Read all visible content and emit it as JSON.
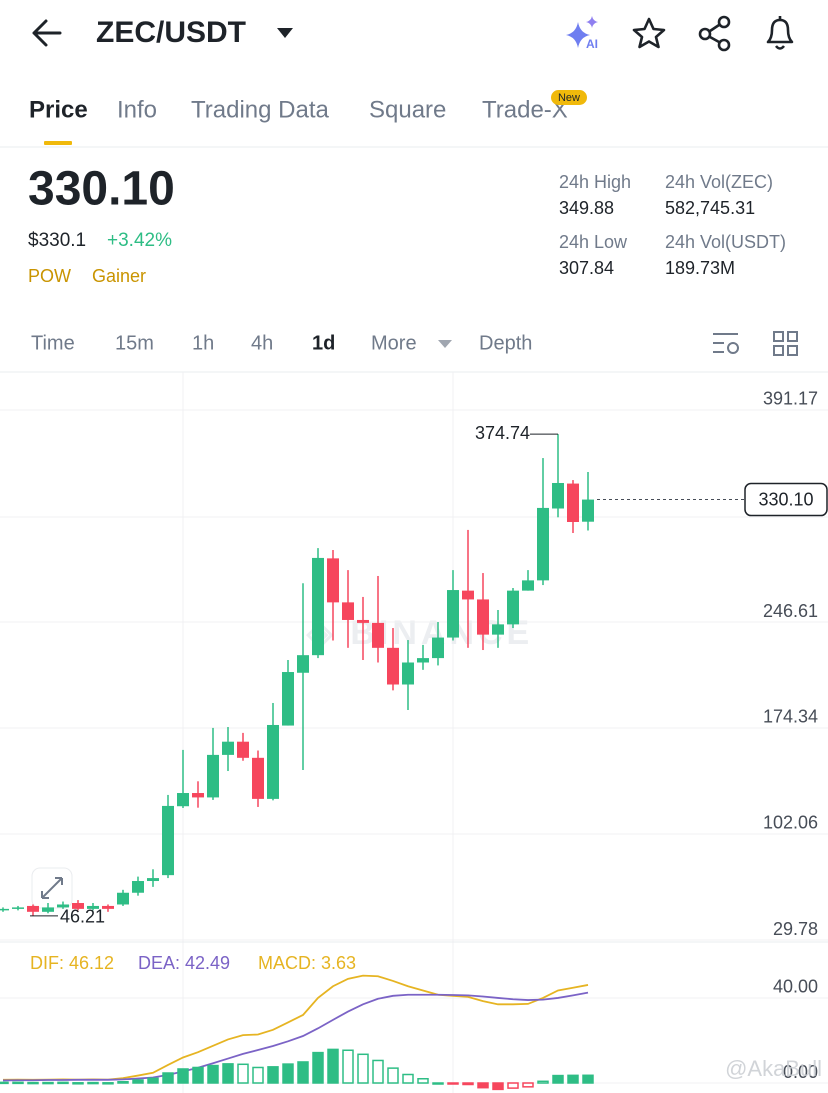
{
  "header": {
    "pair": "ZEC/USDT"
  },
  "tabs": [
    "Price",
    "Info",
    "Trading Data",
    "Square",
    "Trade-X"
  ],
  "badge": "New",
  "price": {
    "last": "330.10",
    "fiat": "$330.1",
    "change": "+3.42%",
    "tags": [
      "POW",
      "Gainer"
    ]
  },
  "stats": [
    {
      "label": "24h High",
      "value": "349.88"
    },
    {
      "label": "24h Vol(ZEC)",
      "value": "582,745.31"
    },
    {
      "label": "24h Low",
      "value": "307.84"
    },
    {
      "label": "24h Vol(USDT)",
      "value": "189.73M"
    }
  ],
  "intervals": [
    "Time",
    "15m",
    "1h",
    "4h",
    "1d",
    "More",
    "Depth"
  ],
  "chart_data": [
    {
      "type": "candlestick",
      "open": [
        50,
        51,
        53,
        49,
        52,
        55,
        51,
        53,
        54,
        62,
        70,
        74,
        121,
        130,
        127,
        156,
        165,
        154,
        126,
        176,
        212,
        224,
        290,
        260,
        248,
        246,
        229,
        204,
        219,
        222,
        236,
        268,
        262,
        238,
        245,
        268,
        275,
        324,
        341,
        315
      ],
      "high": [
        52,
        53,
        54,
        55,
        56,
        57,
        55,
        54,
        64,
        73,
        78,
        128.7,
        159.4,
        138,
        174.4,
        175,
        171,
        159,
        191.4,
        220.7,
        273,
        297,
        295.7,
        282,
        263.7,
        278,
        242.5,
        234.3,
        231,
        246.6,
        282,
        309.4,
        280,
        254.8,
        269.8,
        282,
        358.4,
        374.74,
        343.4,
        348.9
      ],
      "low": [
        49,
        50,
        46.21,
        48,
        51,
        50,
        50,
        49,
        53,
        60,
        66,
        72,
        119.8,
        120,
        125.3,
        145,
        152,
        120.5,
        125,
        176,
        145.7,
        222,
        234,
        229,
        220.7,
        219,
        200,
        186.6,
        214,
        217,
        234,
        229,
        227.5,
        229,
        242.5,
        268,
        271.8,
        318,
        307.3,
        309
      ],
      "close": [
        51,
        52,
        49,
        52,
        54,
        51,
        53,
        51,
        62,
        70,
        72,
        121.2,
        130,
        127,
        156,
        165,
        154,
        126,
        176.4,
        212.5,
        224,
        290.3,
        260,
        248,
        246,
        229,
        204,
        219,
        222,
        236,
        268.4,
        262,
        238,
        245,
        268,
        275,
        324.4,
        341.4,
        314.8,
        330.1
      ],
      "up_color": "#2ebd85",
      "down_color": "#f6465d",
      "ylim": [
        29.78,
        417.08
      ],
      "yticks": [
        29.78,
        102.06,
        174.34,
        246.61,
        391.17
      ],
      "grid": true,
      "last_price_label": "330.10"
    },
    {
      "type": "macd",
      "series": [
        {
          "name": "DIF: 46.12",
          "color": "#e6b422",
          "kind": "line",
          "values": [
            1.5,
            1.6,
            1.5,
            1.6,
            1.7,
            1.6,
            1.7,
            1.6,
            2.3,
            3.5,
            4.8,
            8.5,
            12,
            14.5,
            17.5,
            20.5,
            22.5,
            22.8,
            25,
            28.5,
            32,
            40,
            45.5,
            49,
            50.5,
            50.2,
            48,
            45.5,
            43.5,
            41.5,
            41,
            40.5,
            38.5,
            37,
            37,
            37.2,
            40,
            43.5,
            44.8,
            46.12
          ]
        },
        {
          "name": "DEA: 42.49",
          "color": "#7b63c6",
          "kind": "line",
          "values": [
            1.2,
            1.3,
            1.3,
            1.4,
            1.4,
            1.5,
            1.5,
            1.5,
            1.7,
            2.1,
            2.6,
            3.8,
            5.4,
            7.2,
            9.3,
            11.5,
            13.7,
            15.5,
            17.4,
            19.6,
            22.1,
            25.7,
            29.7,
            33.6,
            37,
            39.6,
            41,
            41.5,
            41.5,
            41.5,
            41.4,
            41.2,
            40.7,
            40,
            39.4,
            39,
            39.2,
            40,
            41.2,
            42.49
          ]
        },
        {
          "name": "MACD: 3.63",
          "color": "#e6b422",
          "kind": "bar",
          "values": [
            0.3,
            0.3,
            0.2,
            0.2,
            0.3,
            0.1,
            0.2,
            0.1,
            0.6,
            1.4,
            2.2,
            4.7,
            6.6,
            7.3,
            8.2,
            9,
            8.8,
            7.3,
            7.6,
            8.9,
            9.9,
            14.3,
            15.8,
            15.4,
            13.5,
            10.6,
            7,
            4,
            2,
            0,
            -0.4,
            -0.7,
            -2.2,
            -3,
            -2.4,
            -1.8,
            0.8,
            3.5,
            3.6,
            3.63
          ]
        }
      ],
      "up_color": "#2ebd85",
      "down_color": "#f6465d",
      "ylim": [
        -4.7,
        64.9
      ],
      "yticks": [
        {
          "value": 0,
          "label": "0.00"
        },
        {
          "value": 40,
          "label": "40.00"
        }
      ]
    }
  ],
  "watermark": "@AkaBull"
}
